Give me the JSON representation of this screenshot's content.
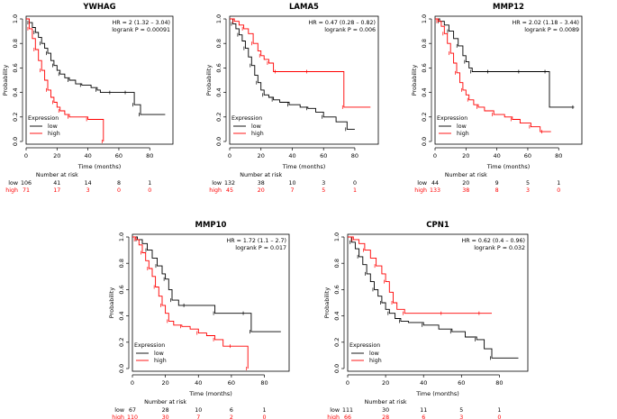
{
  "colors": {
    "low": "#000000",
    "high": "#ff0000",
    "axis": "#000000"
  },
  "chart_data": [
    {
      "type": "line",
      "title": "YWHAG",
      "xlabel": "Time (months)",
      "ylabel": "Probability",
      "xlim": [
        0,
        95
      ],
      "ylim": [
        0,
        1
      ],
      "xticks": [
        "0",
        "20",
        "40",
        "60",
        "80"
      ],
      "yticks": [
        "0.0",
        "0.2",
        "0.4",
        "0.6",
        "0.8",
        "1.0"
      ],
      "hr_text": "HR = 2 (1.32 – 3.04)",
      "logrank_text": "logrank P = 0.00091",
      "legend_title": "Expression",
      "series": [
        {
          "name": "low",
          "color": "#000000",
          "x": [
            0,
            2,
            4,
            6,
            8,
            10,
            12,
            14,
            16,
            18,
            20,
            22,
            25,
            28,
            32,
            36,
            42,
            46,
            48,
            55,
            60,
            65,
            68,
            70,
            72,
            74,
            90
          ],
          "y": [
            1.0,
            0.97,
            0.93,
            0.89,
            0.85,
            0.8,
            0.76,
            0.72,
            0.66,
            0.62,
            0.58,
            0.55,
            0.52,
            0.5,
            0.47,
            0.46,
            0.44,
            0.42,
            0.4,
            0.4,
            0.4,
            0.4,
            0.4,
            0.3,
            0.3,
            0.22,
            0.22
          ]
        },
        {
          "name": "high",
          "color": "#ff0000",
          "x": [
            0,
            2,
            4,
            6,
            8,
            10,
            12,
            14,
            16,
            18,
            20,
            22,
            25,
            28,
            35,
            40,
            48,
            50
          ],
          "y": [
            1.0,
            0.92,
            0.84,
            0.75,
            0.66,
            0.58,
            0.5,
            0.42,
            0.36,
            0.32,
            0.28,
            0.25,
            0.22,
            0.2,
            0.2,
            0.18,
            0.18,
            0.0
          ]
        }
      ],
      "risk_title": "Number at risk",
      "risk_table": [
        {
          "label": "low",
          "color": "#000000",
          "values": [
            "106",
            "41",
            "14",
            "8",
            "1"
          ]
        },
        {
          "label": "high",
          "color": "#ff0000",
          "values": [
            "71",
            "17",
            "3",
            "0",
            "0"
          ]
        }
      ]
    },
    {
      "type": "line",
      "title": "LAMA5",
      "xlabel": "Time (months)",
      "ylabel": "Probability",
      "xlim": [
        0,
        95
      ],
      "ylim": [
        0,
        1
      ],
      "xticks": [
        "0",
        "20",
        "40",
        "60",
        "80"
      ],
      "yticks": [
        "0.0",
        "0.2",
        "0.4",
        "0.6",
        "0.8",
        "1.0"
      ],
      "hr_text": "HR = 0.47 (0.28 – 0.82)",
      "logrank_text": "logrank P = 0.006",
      "legend_title": "Expression",
      "series": [
        {
          "name": "low",
          "color": "#000000",
          "x": [
            0,
            2,
            4,
            6,
            8,
            10,
            12,
            14,
            16,
            18,
            20,
            22,
            25,
            28,
            32,
            38,
            45,
            50,
            55,
            60,
            68,
            75,
            80
          ],
          "y": [
            1.0,
            0.96,
            0.92,
            0.87,
            0.82,
            0.76,
            0.69,
            0.62,
            0.54,
            0.48,
            0.42,
            0.38,
            0.36,
            0.34,
            0.32,
            0.3,
            0.28,
            0.27,
            0.24,
            0.2,
            0.16,
            0.1,
            0.1
          ]
        },
        {
          "name": "high",
          "color": "#ff0000",
          "x": [
            0,
            3,
            6,
            9,
            12,
            15,
            18,
            20,
            22,
            25,
            28,
            30,
            40,
            50,
            72,
            73,
            90
          ],
          "y": [
            1.0,
            0.98,
            0.95,
            0.92,
            0.88,
            0.8,
            0.74,
            0.7,
            0.67,
            0.64,
            0.57,
            0.57,
            0.57,
            0.57,
            0.57,
            0.28,
            0.28
          ]
        }
      ],
      "risk_title": "Number at risk",
      "risk_table": [
        {
          "label": "low",
          "color": "#000000",
          "values": [
            "132",
            "38",
            "10",
            "3",
            "0"
          ]
        },
        {
          "label": "high",
          "color": "#ff0000",
          "values": [
            "45",
            "20",
            "7",
            "5",
            "1"
          ]
        }
      ]
    },
    {
      "type": "line",
      "title": "MMP12",
      "xlabel": "Time (months)",
      "ylabel": "Probability",
      "xlim": [
        0,
        95
      ],
      "ylim": [
        0,
        1
      ],
      "xticks": [
        "0",
        "20",
        "40",
        "60",
        "80"
      ],
      "yticks": [
        "0.0",
        "0.2",
        "0.4",
        "0.6",
        "0.8",
        "1.0"
      ],
      "hr_text": "HR = 2.02 (1.18 – 3.44)",
      "logrank_text": "logrank P = 0.0089",
      "legend_title": "Expression",
      "series": [
        {
          "name": "low",
          "color": "#000000",
          "x": [
            0,
            3,
            6,
            9,
            12,
            15,
            18,
            20,
            22,
            24,
            28,
            35,
            45,
            55,
            65,
            72,
            74,
            90
          ],
          "y": [
            1.0,
            0.98,
            0.95,
            0.9,
            0.84,
            0.78,
            0.7,
            0.65,
            0.6,
            0.57,
            0.57,
            0.57,
            0.57,
            0.57,
            0.57,
            0.57,
            0.28,
            0.28
          ]
        },
        {
          "name": "high",
          "color": "#ff0000",
          "x": [
            0,
            2,
            4,
            6,
            8,
            10,
            12,
            14,
            16,
            18,
            20,
            22,
            25,
            28,
            32,
            38,
            45,
            50,
            55,
            62,
            68,
            70,
            75
          ],
          "y": [
            1.0,
            0.98,
            0.94,
            0.88,
            0.8,
            0.72,
            0.64,
            0.56,
            0.48,
            0.42,
            0.38,
            0.34,
            0.3,
            0.28,
            0.25,
            0.22,
            0.2,
            0.18,
            0.15,
            0.12,
            0.08,
            0.08,
            0.08
          ]
        }
      ],
      "risk_title": "Number at risk",
      "risk_table": [
        {
          "label": "low",
          "color": "#000000",
          "values": [
            "44",
            "20",
            "9",
            "5",
            "1"
          ]
        },
        {
          "label": "high",
          "color": "#ff0000",
          "values": [
            "133",
            "38",
            "8",
            "3",
            "0"
          ]
        }
      ]
    },
    {
      "type": "line",
      "title": "MMP10",
      "xlabel": "Time (months)",
      "ylabel": "Probability",
      "xlim": [
        0,
        95
      ],
      "ylim": [
        0,
        1
      ],
      "xticks": [
        "0",
        "20",
        "40",
        "60",
        "80"
      ],
      "yticks": [
        "0.0",
        "0.2",
        "0.4",
        "0.6",
        "0.8",
        "1.0"
      ],
      "hr_text": "HR = 1.72 (1.1 – 2.7)",
      "logrank_text": "logrank P = 0.017",
      "legend_title": "Expression",
      "series": [
        {
          "name": "low",
          "color": "#000000",
          "x": [
            0,
            3,
            6,
            9,
            12,
            15,
            18,
            20,
            22,
            24,
            28,
            32,
            40,
            50,
            60,
            68,
            70,
            72,
            90
          ],
          "y": [
            1.0,
            0.98,
            0.95,
            0.9,
            0.84,
            0.78,
            0.72,
            0.68,
            0.6,
            0.52,
            0.48,
            0.48,
            0.48,
            0.42,
            0.42,
            0.42,
            0.42,
            0.28,
            0.28
          ]
        },
        {
          "name": "high",
          "color": "#ff0000",
          "x": [
            0,
            2,
            4,
            6,
            8,
            10,
            12,
            14,
            16,
            18,
            20,
            22,
            25,
            30,
            35,
            40,
            45,
            50,
            55,
            60,
            68,
            70
          ],
          "y": [
            1.0,
            0.98,
            0.94,
            0.88,
            0.82,
            0.76,
            0.7,
            0.62,
            0.55,
            0.48,
            0.42,
            0.36,
            0.33,
            0.32,
            0.3,
            0.27,
            0.25,
            0.22,
            0.17,
            0.17,
            0.17,
            0.0
          ]
        }
      ],
      "risk_title": "Number at risk",
      "risk_table": [
        {
          "label": "low",
          "color": "#000000",
          "values": [
            "67",
            "28",
            "10",
            "6",
            "1"
          ]
        },
        {
          "label": "high",
          "color": "#ff0000",
          "values": [
            "110",
            "30",
            "7",
            "2",
            "0"
          ]
        }
      ]
    },
    {
      "type": "line",
      "title": "CPN1",
      "xlabel": "Time (months)",
      "ylabel": "Probability",
      "xlim": [
        0,
        95
      ],
      "ylim": [
        0,
        1
      ],
      "xticks": [
        "0",
        "20",
        "40",
        "60",
        "80"
      ],
      "yticks": [
        "0.0",
        "0.2",
        "0.4",
        "0.6",
        "0.8",
        "1.0"
      ],
      "hr_text": "HR = 0.62 (0.4 – 0.96)",
      "logrank_text": "logrank P = 0.032",
      "legend_title": "Expression",
      "series": [
        {
          "name": "low",
          "color": "#000000",
          "x": [
            0,
            2,
            4,
            6,
            8,
            10,
            12,
            14,
            16,
            18,
            20,
            22,
            25,
            28,
            32,
            40,
            48,
            55,
            62,
            68,
            72,
            76,
            90
          ],
          "y": [
            1.0,
            0.96,
            0.91,
            0.85,
            0.79,
            0.72,
            0.66,
            0.6,
            0.55,
            0.5,
            0.45,
            0.42,
            0.38,
            0.36,
            0.35,
            0.33,
            0.3,
            0.28,
            0.24,
            0.22,
            0.15,
            0.08,
            0.08
          ]
        },
        {
          "name": "high",
          "color": "#ff0000",
          "x": [
            0,
            3,
            6,
            9,
            12,
            15,
            18,
            20,
            22,
            24,
            26,
            30,
            40,
            50,
            60,
            70,
            76
          ],
          "y": [
            1.0,
            0.98,
            0.95,
            0.9,
            0.84,
            0.78,
            0.72,
            0.66,
            0.58,
            0.5,
            0.45,
            0.42,
            0.42,
            0.42,
            0.42,
            0.42,
            0.42
          ]
        }
      ],
      "risk_title": "Number at risk",
      "risk_table": [
        {
          "label": "low",
          "color": "#000000",
          "values": [
            "111",
            "30",
            "11",
            "5",
            "1"
          ]
        },
        {
          "label": "high",
          "color": "#ff0000",
          "values": [
            "66",
            "28",
            "6",
            "3",
            "0"
          ]
        }
      ]
    }
  ]
}
